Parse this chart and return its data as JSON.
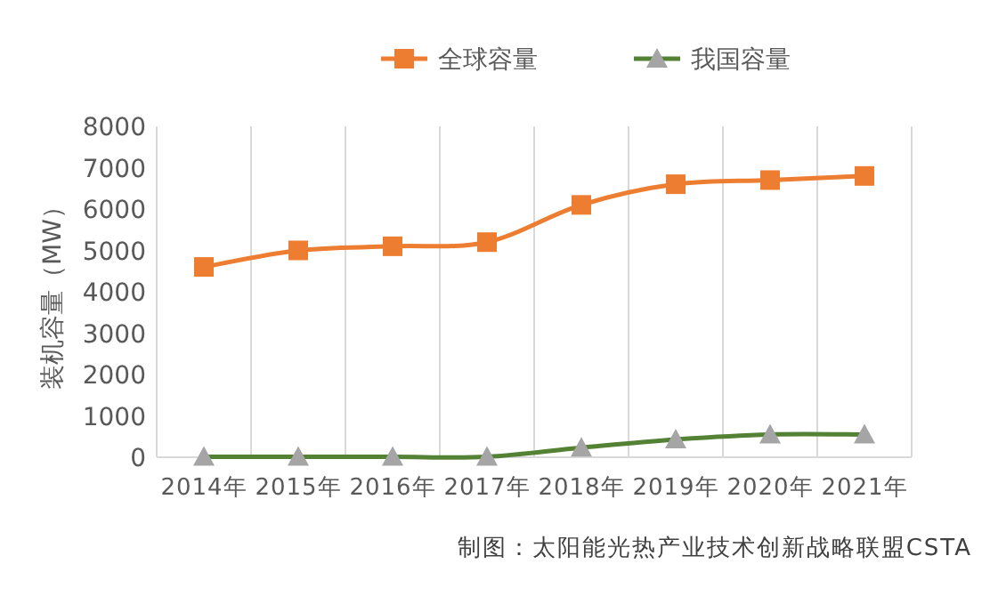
{
  "chart_data": {
    "type": "line",
    "categories": [
      "2014年",
      "2015年",
      "2016年",
      "2017年",
      "2018年",
      "2019年",
      "2020年",
      "2021年"
    ],
    "series": [
      {
        "name": "全球容量",
        "color": "#ed7d31",
        "marker": "square",
        "values": [
          4600,
          5000,
          5100,
          5200,
          6100,
          6600,
          6700,
          6800
        ]
      },
      {
        "name": "我国容量",
        "color": "#548235",
        "marker": "triangle",
        "values": [
          10,
          10,
          10,
          10,
          230,
          430,
          550,
          550
        ]
      }
    ],
    "ylabel": "装机容量（MW）",
    "ylim": [
      0,
      8000
    ],
    "yticks": [
      0,
      1000,
      2000,
      3000,
      4000,
      5000,
      6000,
      7000,
      8000
    ],
    "grid": "x",
    "legend": "top",
    "annotations": [
      "制图：太阳能光热产业技术创新战略联盟CSTA"
    ]
  }
}
